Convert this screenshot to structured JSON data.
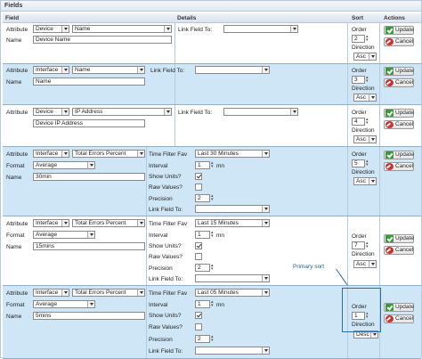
{
  "panel": {
    "title": "Fields"
  },
  "headers": {
    "field": "Field",
    "details": "Details",
    "sort": "Sort",
    "actions": "Actions"
  },
  "labels": {
    "attribute": "Attribute",
    "name": "Name",
    "format": "Format",
    "link_field_to": "Link Field To:",
    "time_filter": "Time Filter Fav",
    "interval": "Interval",
    "show_units": "Show Units?",
    "raw_values": "Raw Values?",
    "precision": "Precision",
    "order": "Order",
    "direction": "Direction",
    "mn": "mn",
    "update": "Update",
    "cancel": "Cancel"
  },
  "rows": [
    {
      "attr_type": "Device",
      "attr_field": "Name",
      "name": "Device Name",
      "order": "2",
      "direction": "Asc"
    },
    {
      "attr_type": "Interface",
      "attr_field": "Name",
      "name": "Name",
      "order": "3",
      "direction": "Asc"
    },
    {
      "attr_type": "Device",
      "attr_field": "IP Address",
      "name": "Device IP Address",
      "order": "4",
      "direction": "Asc"
    },
    {
      "attr_type": "Interface",
      "attr_field": "Total Errors Percent",
      "format": "Average",
      "name": "30min",
      "time_filter": "Last 30 Minutes",
      "interval": "1",
      "precision": "2",
      "order": "5",
      "direction": "Asc"
    },
    {
      "attr_type": "Interface",
      "attr_field": "Total Errors Percent",
      "format": "Average",
      "name": "15mins",
      "time_filter": "Last 15 Minutes",
      "interval": "1",
      "precision": "2",
      "order": "7",
      "direction": "Asc"
    },
    {
      "attr_type": "Interface",
      "attr_field": "Total Errors Percent",
      "format": "Average",
      "name": "5mins",
      "time_filter": "Last 05 Minutes",
      "interval": "1",
      "precision": "2",
      "order": "1",
      "direction": "Desc"
    }
  ],
  "annotation": {
    "text": "Primary sort",
    "color": "#2e6da4"
  }
}
